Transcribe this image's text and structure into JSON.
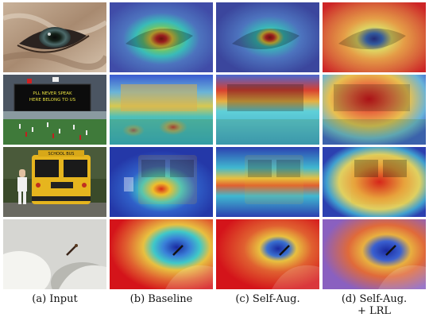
{
  "figure": {
    "captions": {
      "input": "(a) Input",
      "baseline": "(b) Baseline",
      "self_aug": "(c) Self-Aug.",
      "self_aug_lrl_line1": "(d) Self-Aug.",
      "self_aug_lrl_line2": "+ LRL"
    },
    "rows": [
      {
        "subject": "eye-closeup"
      },
      {
        "subject": "stadium-scoreboard",
        "scoreboard_text": [
          "PLL NEVER SPEAK",
          "HERE BELONG TO US"
        ]
      },
      {
        "subject": "school-bus",
        "bus_text": "SCHOOL BUS"
      },
      {
        "subject": "cup-with-insect"
      }
    ],
    "heatmap_colors": {
      "hot": "#d4141a",
      "warm": "#f2d530",
      "mid": "#22c6c9",
      "cold": "#2a3fb5"
    }
  }
}
